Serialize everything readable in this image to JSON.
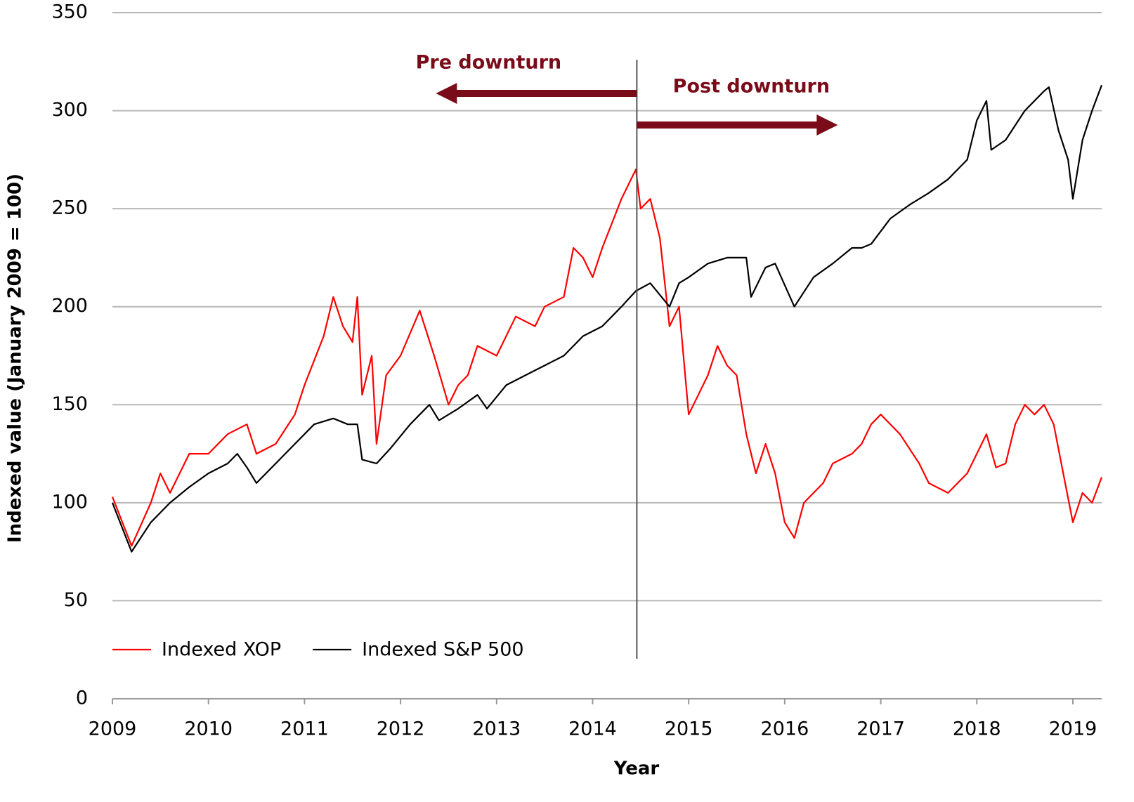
{
  "chart_data": {
    "type": "line",
    "ylabel": "Indexed value (January 2009 = 100)",
    "xlabel": "Year",
    "xlim": [
      2009,
      2019.3
    ],
    "xticks": [
      2009,
      2010,
      2011,
      2012,
      2013,
      2014,
      2015,
      2016,
      2017,
      2018,
      2019
    ],
    "ylim": [
      0,
      350
    ],
    "yticks": [
      0,
      50,
      100,
      150,
      200,
      250,
      300,
      350
    ],
    "grid": true,
    "legend": "lower left",
    "vline": 2014.46,
    "annotations": [
      "Pre downturn",
      "Post downturn"
    ],
    "annotation_color": "#7a0c19",
    "series": [
      {
        "name": "Indexed XOP",
        "color": "#ff0000",
        "x": [
          2009.0,
          2009.2,
          2009.4,
          2009.5,
          2009.6,
          2009.8,
          2010.0,
          2010.2,
          2010.4,
          2010.5,
          2010.7,
          2010.9,
          2011.0,
          2011.2,
          2011.3,
          2011.4,
          2011.5,
          2011.55,
          2011.6,
          2011.7,
          2011.75,
          2011.85,
          2012.0,
          2012.2,
          2012.35,
          2012.5,
          2012.6,
          2012.7,
          2012.8,
          2013.0,
          2013.2,
          2013.4,
          2013.5,
          2013.7,
          2013.8,
          2013.9,
          2014.0,
          2014.1,
          2014.3,
          2014.45,
          2014.5,
          2014.6,
          2014.7,
          2014.8,
          2014.9,
          2015.0,
          2015.1,
          2015.2,
          2015.3,
          2015.4,
          2015.5,
          2015.6,
          2015.7,
          2015.8,
          2015.9,
          2016.0,
          2016.1,
          2016.2,
          2016.4,
          2016.5,
          2016.7,
          2016.8,
          2016.9,
          2017.0,
          2017.2,
          2017.4,
          2017.5,
          2017.7,
          2017.8,
          2017.9,
          2018.0,
          2018.1,
          2018.2,
          2018.3,
          2018.4,
          2018.5,
          2018.6,
          2018.7,
          2018.8,
          2018.9,
          2019.0,
          2019.1,
          2019.2,
          2019.3
        ],
        "values": [
          103,
          78,
          100,
          115,
          105,
          125,
          125,
          135,
          140,
          125,
          130,
          145,
          160,
          185,
          205,
          190,
          182,
          205,
          155,
          175,
          130,
          165,
          175,
          198,
          175,
          150,
          160,
          165,
          180,
          175,
          195,
          190,
          200,
          205,
          230,
          225,
          215,
          230,
          255,
          270,
          250,
          255,
          235,
          190,
          200,
          145,
          155,
          165,
          180,
          170,
          165,
          135,
          115,
          130,
          115,
          90,
          82,
          100,
          110,
          120,
          125,
          130,
          140,
          145,
          135,
          120,
          110,
          105,
          110,
          115,
          125,
          135,
          118,
          120,
          140,
          150,
          145,
          150,
          140,
          115,
          90,
          105,
          100,
          113
        ]
      },
      {
        "name": "Indexed S&P 500",
        "color": "#000000",
        "x": [
          2009.0,
          2009.2,
          2009.4,
          2009.6,
          2009.8,
          2010.0,
          2010.2,
          2010.3,
          2010.4,
          2010.5,
          2010.7,
          2010.9,
          2011.1,
          2011.3,
          2011.45,
          2011.55,
          2011.6,
          2011.75,
          2011.9,
          2012.1,
          2012.3,
          2012.4,
          2012.6,
          2012.8,
          2012.9,
          2013.1,
          2013.3,
          2013.5,
          2013.7,
          2013.9,
          2014.1,
          2014.3,
          2014.45,
          2014.6,
          2014.8,
          2014.9,
          2015.0,
          2015.2,
          2015.4,
          2015.6,
          2015.65,
          2015.8,
          2015.9,
          2016.1,
          2016.3,
          2016.5,
          2016.7,
          2016.8,
          2016.9,
          2017.1,
          2017.3,
          2017.5,
          2017.7,
          2017.9,
          2018.0,
          2018.1,
          2018.15,
          2018.3,
          2018.5,
          2018.7,
          2018.75,
          2018.85,
          2018.95,
          2019.0,
          2019.1,
          2019.2,
          2019.3
        ],
        "values": [
          100,
          75,
          90,
          100,
          108,
          115,
          120,
          125,
          118,
          110,
          120,
          130,
          140,
          143,
          140,
          140,
          122,
          120,
          128,
          140,
          150,
          142,
          148,
          155,
          148,
          160,
          165,
          170,
          175,
          185,
          190,
          200,
          208,
          212,
          200,
          212,
          215,
          222,
          225,
          225,
          205,
          220,
          222,
          200,
          215,
          222,
          230,
          230,
          232,
          245,
          252,
          258,
          265,
          275,
          295,
          305,
          280,
          285,
          300,
          310,
          312,
          290,
          275,
          255,
          285,
          300,
          313
        ]
      }
    ]
  }
}
